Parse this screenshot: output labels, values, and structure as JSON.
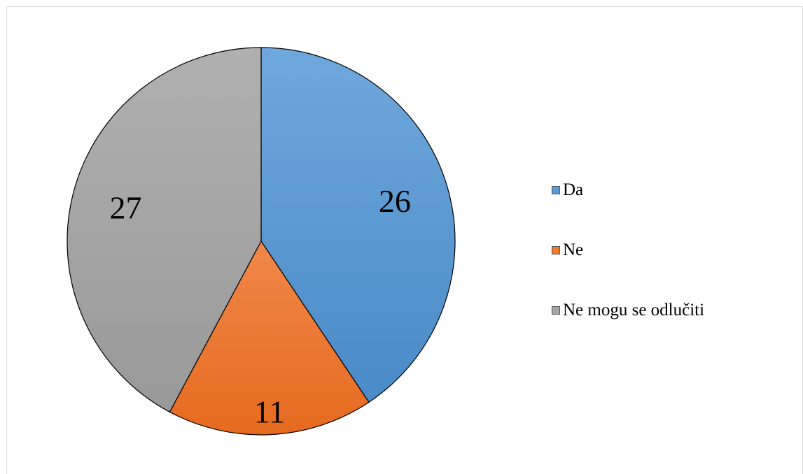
{
  "chart_data": {
    "type": "pie",
    "title": "",
    "start_angle_deg": 0,
    "direction": "clockwise",
    "slices": [
      {
        "label": "Da",
        "value": 26,
        "color": "#5b9bd5",
        "color_light": "#6fa8dc",
        "color_dark": "#4a8ac7"
      },
      {
        "label": "Ne",
        "value": 11,
        "color": "#ed7d31",
        "color_light": "#f0884a",
        "color_dark": "#e56a1e"
      },
      {
        "label": "Ne mogu se odlučiti",
        "value": 27,
        "color": "#a5a5a5",
        "color_light": "#b0b0b0",
        "color_dark": "#999999"
      }
    ],
    "data_labels": [
      "26",
      "11",
      "27"
    ],
    "legend": {
      "placement": "right",
      "entries": [
        "Da",
        "Ne",
        "Ne mogu se odlučiti"
      ]
    }
  }
}
